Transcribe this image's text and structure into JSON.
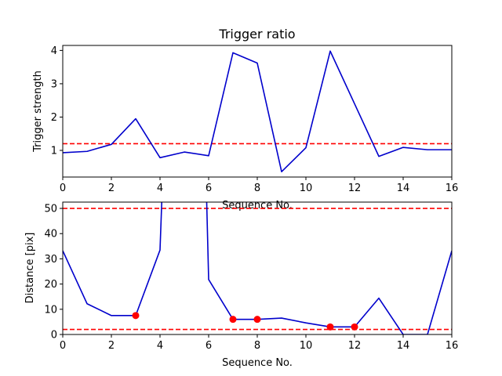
{
  "chart_data": [
    {
      "type": "line",
      "title": "Trigger ratio",
      "xlabel": "Sequence No.",
      "ylabel": "Trigger strength",
      "xlim": [
        0,
        16
      ],
      "ylim": [
        0.2,
        4.15
      ],
      "xticks": [
        0,
        2,
        4,
        6,
        8,
        10,
        12,
        14,
        16
      ],
      "yticks": [
        1,
        2,
        3,
        4
      ],
      "grid": false,
      "series": [
        {
          "color": "#0000cc",
          "x": [
            0,
            1,
            2,
            3,
            4,
            5,
            6,
            7,
            8,
            9,
            10,
            11,
            12,
            13,
            14,
            15,
            16
          ],
          "y": [
            0.93,
            0.97,
            1.18,
            1.95,
            0.78,
            0.95,
            0.84,
            3.93,
            3.62,
            0.36,
            1.08,
            3.98,
            2.4,
            0.82,
            1.09,
            1.02,
            1.02
          ]
        }
      ],
      "hlines": [
        {
          "y": 1.2,
          "color": "#ff0000",
          "style": "dashed"
        }
      ]
    },
    {
      "type": "line",
      "title": "",
      "xlabel": "Sequence No.",
      "ylabel": "Distance [pix]",
      "xlim": [
        0,
        16
      ],
      "ylim": [
        0,
        52.5
      ],
      "xticks": [
        0,
        2,
        4,
        6,
        8,
        10,
        12,
        14,
        16
      ],
      "yticks": [
        0,
        10,
        20,
        30,
        40,
        50
      ],
      "grid": false,
      "series": [
        {
          "color": "#0000cc",
          "x": [
            0,
            1,
            2,
            3,
            4,
            4.1,
            5.9,
            6,
            7,
            8,
            9,
            10,
            11,
            12,
            13,
            14,
            15,
            16
          ],
          "y": [
            33.2,
            12.2,
            7.5,
            7.5,
            33.5,
            60,
            60,
            21.8,
            6,
            6,
            6.5,
            4.6,
            3,
            3,
            14.4,
            0,
            0,
            33.2
          ]
        }
      ],
      "markers": {
        "color": "#ff0000",
        "x": [
          3,
          7,
          8,
          11,
          12
        ],
        "y": [
          7.5,
          6,
          6,
          3,
          3
        ]
      },
      "hlines": [
        {
          "y": 50,
          "color": "#ff0000",
          "style": "dashed"
        },
        {
          "y": 2,
          "color": "#ff0000",
          "style": "dashed"
        }
      ]
    }
  ]
}
